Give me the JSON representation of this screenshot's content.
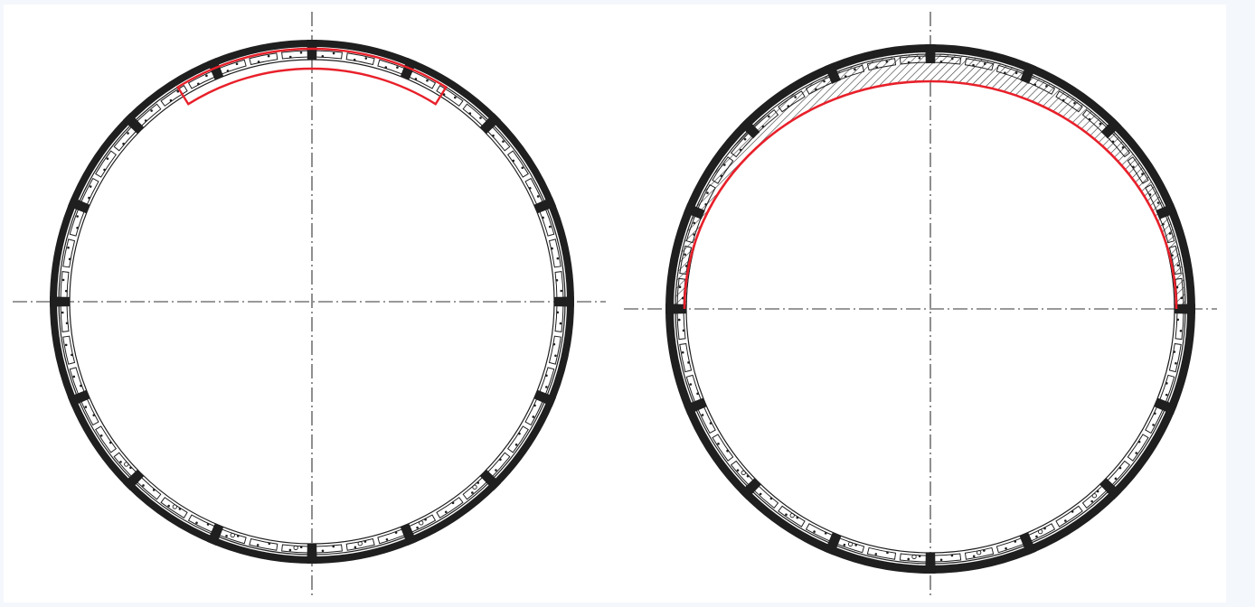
{
  "colors": {
    "background": "#f4f7fc",
    "panel": "#ffffff",
    "ink": "#1f1f1f",
    "centerline": "#333333",
    "highlight": "#e8202a",
    "hatch": "#333333"
  },
  "diagrams": [
    {
      "id": "left",
      "description_icon": "tunnel-lining-ring-icon",
      "highlight": "outlined-arc-segment",
      "joint_count": 16
    },
    {
      "id": "right",
      "description_icon": "tunnel-lining-ring-icon",
      "highlight": "hatched-upper-half",
      "joint_count": 16
    }
  ]
}
